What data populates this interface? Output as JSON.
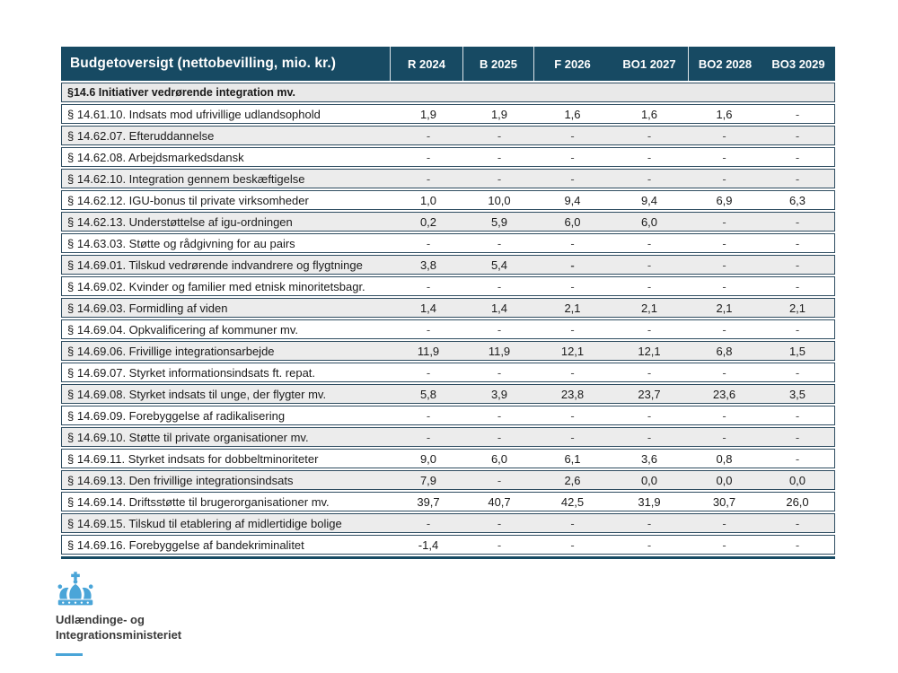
{
  "table": {
    "title": "Budgetoversigt (nettobevilling, mio. kr.)",
    "columns": [
      "R 2024",
      "B 2025",
      "F 2026",
      "BO1 2027",
      "BO2 2028",
      "BO3 2029"
    ],
    "section": "§14.6 Initiativer vedrørende integration mv.",
    "rows": [
      {
        "label": "§ 14.61.10. Indsats mod ufrivillige udlandsophold",
        "values": [
          "1,9",
          "1,9",
          "1,6",
          "1,6",
          "1,6",
          "-"
        ]
      },
      {
        "label": "§ 14.62.07. Efteruddannelse",
        "values": [
          "-",
          "-",
          "-",
          "-",
          "-",
          "-"
        ]
      },
      {
        "label": "§ 14.62.08. Arbejdsmarkedsdansk",
        "values": [
          "-",
          "-",
          "-",
          "-",
          "-",
          "-"
        ]
      },
      {
        "label": "§ 14.62.10. Integration gennem beskæftigelse",
        "values": [
          "-",
          "-",
          "-",
          "-",
          "-",
          "-"
        ]
      },
      {
        "label": "§ 14.62.12. IGU-bonus til private virksomheder",
        "values": [
          "1,0",
          "10,0",
          "9,4",
          "9,4",
          "6,9",
          "6,3"
        ]
      },
      {
        "label": "§ 14.62.13. Understøttelse af igu-ordningen",
        "values": [
          "0,2",
          "5,9",
          "6,0",
          "6,0",
          "-",
          "-"
        ]
      },
      {
        "label": "§ 14.63.03. Støtte og rådgivning for au pairs",
        "values": [
          "-",
          "-",
          "-",
          "-",
          "-",
          "-"
        ]
      },
      {
        "label": "§ 14.69.01. Tilskud vedrørende indvandrere og flygtninge",
        "values": [
          "3,8",
          "5,4",
          "-",
          "-",
          "-",
          "-"
        ],
        "bold": [
          2
        ]
      },
      {
        "label": "§ 14.69.02. Kvinder og familier med etnisk minoritetsbagr.",
        "values": [
          "-",
          "-",
          "-",
          "-",
          "-",
          "-"
        ]
      },
      {
        "label": "§ 14.69.03. Formidling af viden",
        "values": [
          "1,4",
          "1,4",
          "2,1",
          "2,1",
          "2,1",
          "2,1"
        ]
      },
      {
        "label": "§ 14.69.04. Opkvalificering af kommuner mv.",
        "values": [
          "-",
          "-",
          "-",
          "-",
          "-",
          "-"
        ]
      },
      {
        "label": "§ 14.69.06. Frivillige integrationsarbejde",
        "values": [
          "11,9",
          "11,9",
          "12,1",
          "12,1",
          "6,8",
          "1,5"
        ]
      },
      {
        "label": "§ 14.69.07. Styrket informationsindsats ft. repat.",
        "values": [
          "-",
          "-",
          "-",
          "-",
          "-",
          "-"
        ]
      },
      {
        "label": "§ 14.69.08. Styrket indsats til unge, der flygter mv.",
        "values": [
          "5,8",
          "3,9",
          "23,8",
          "23,7",
          "23,6",
          "3,5"
        ]
      },
      {
        "label": "§ 14.69.09. Forebyggelse af radikalisering",
        "values": [
          "-",
          "-",
          "-",
          "-",
          "-",
          "-"
        ]
      },
      {
        "label": "§ 14.69.10. Støtte til private organisationer mv.",
        "values": [
          "-",
          "-",
          "-",
          "-",
          "-",
          "-"
        ]
      },
      {
        "label": "§ 14.69.11. Styrket indsats for dobbeltminoriteter",
        "values": [
          "9,0",
          "6,0",
          "6,1",
          "3,6",
          "0,8",
          "-"
        ]
      },
      {
        "label": "§ 14.69.13. Den frivillige integrationsindsats",
        "values": [
          "7,9",
          "-",
          "2,6",
          "0,0",
          "0,0",
          "0,0"
        ]
      },
      {
        "label": "§ 14.69.14. Driftsstøtte til brugerorganisationer mv.",
        "values": [
          "39,7",
          "40,7",
          "42,5",
          "31,9",
          "30,7",
          "26,0"
        ]
      },
      {
        "label": "§ 14.69.15. Tilskud til etablering af midlertidige bolige",
        "values": [
          "-",
          "-",
          "-",
          "-",
          "-",
          "-"
        ]
      },
      {
        "label": "§ 14.69.16. Forebyggelse af bandekriminalitet",
        "values": [
          "-1,4",
          "-",
          "-",
          "-",
          "-",
          "-"
        ]
      }
    ]
  },
  "logo": {
    "crown_icon": "danish-crown-icon",
    "org_line1": "Udlændinge- og",
    "org_line2": "Integrationsministeriet"
  },
  "colors": {
    "header_bg": "#174A63",
    "section_bg": "#E9E9E9",
    "row_alt_bg": "#ECECEC",
    "row_border": "#2E4C60",
    "crown_blue": "#4AA5D8",
    "logo_text": "#3A3A3A"
  }
}
